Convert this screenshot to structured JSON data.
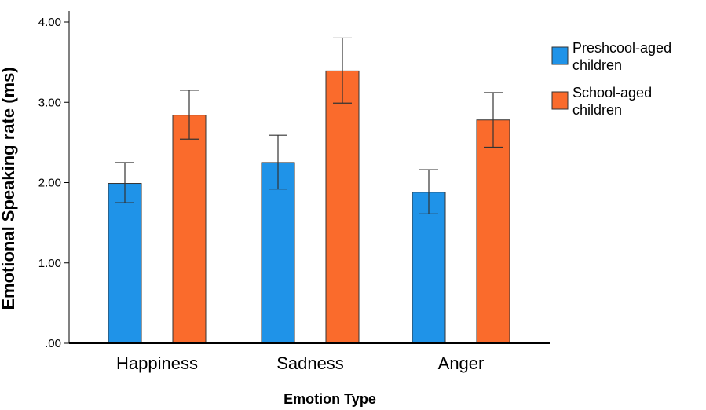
{
  "chart_data": {
    "type": "bar",
    "title": "",
    "xlabel": "Emotion Type",
    "ylabel": "Emotional Speaking rate (ms)",
    "categories": [
      "Happiness",
      "Sadness",
      "Anger"
    ],
    "ylim": [
      0,
      4
    ],
    "yticks": [
      ".00",
      "1.00",
      "2.00",
      "3.00",
      "4.00"
    ],
    "grid": false,
    "legend_position": "right",
    "series": [
      {
        "name": "Preshcool-aged children",
        "color": "#1f93e8",
        "values": [
          1.99,
          2.25,
          1.88
        ],
        "err_low": [
          1.75,
          1.92,
          1.61
        ],
        "err_high": [
          2.25,
          2.59,
          2.16
        ]
      },
      {
        "name": "School-aged children",
        "color": "#fa6b2c",
        "values": [
          2.84,
          3.39,
          2.78
        ],
        "err_low": [
          2.54,
          2.99,
          2.44
        ],
        "err_high": [
          3.15,
          3.8,
          3.12
        ]
      }
    ],
    "legend": [
      {
        "line1": "Preshcool-aged",
        "line2": "children"
      },
      {
        "line1": "School-aged",
        "line2": "children"
      }
    ]
  }
}
